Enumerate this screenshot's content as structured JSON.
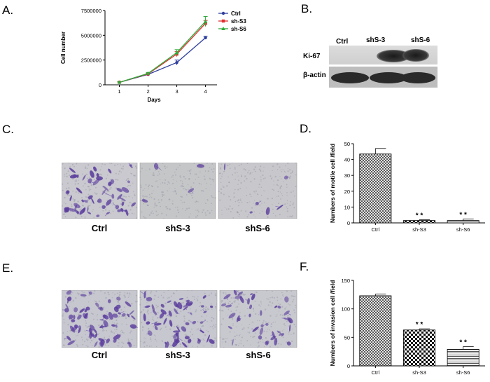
{
  "panels": {
    "a": "A.",
    "b": "B.",
    "c": "C.",
    "d": "D.",
    "e": "E.",
    "f": "F."
  },
  "blot": {
    "lanes": [
      "Ctrl",
      "shS-3",
      "shS-6"
    ],
    "rows": [
      "Ki-67",
      "β-actin"
    ]
  },
  "migration_images": {
    "labels": [
      "Ctrl",
      "shS-3",
      "shS-6"
    ]
  },
  "invasion_images": {
    "labels": [
      "Ctrl",
      "shS-3",
      "shS-6"
    ]
  },
  "chart_data": [
    {
      "id": "A",
      "type": "line",
      "xlabel": "Days",
      "ylabel": "Cell number",
      "x": [
        1,
        2,
        3,
        4
      ],
      "ylim": [
        0,
        7500000
      ],
      "yticks": [
        "0",
        "2500000",
        "5000000",
        "7500000"
      ],
      "legend_position": "top-right",
      "series": [
        {
          "name": "Ctrl",
          "color": "#2f3f9e",
          "marker": "circle",
          "values": [
            250000,
            1050000,
            2250000,
            4750000
          ],
          "errors": [
            50000,
            80000,
            250000,
            150000
          ]
        },
        {
          "name": "sh-S3",
          "color": "#e03030",
          "marker": "square",
          "values": [
            250000,
            1100000,
            3100000,
            6200000
          ],
          "errors": [
            50000,
            80000,
            250000,
            300000
          ]
        },
        {
          "name": "sh-S6",
          "color": "#2eaa3a",
          "marker": "triangle",
          "values": [
            250000,
            1150000,
            3250000,
            6400000
          ],
          "errors": [
            50000,
            100000,
            300000,
            500000
          ]
        }
      ]
    },
    {
      "id": "D",
      "type": "bar",
      "ylabel": "Numbers of motile cell /field",
      "categories": [
        "Ctrl",
        "sh-S3",
        "sh-S6"
      ],
      "values": [
        43.5,
        1.5,
        1.5
      ],
      "errors": [
        3.5,
        0.5,
        1.0
      ],
      "ylim": [
        0,
        50
      ],
      "yticks": [
        "0",
        "10",
        "20",
        "30",
        "40",
        "50"
      ],
      "significance": [
        "",
        "* *",
        "* *"
      ]
    },
    {
      "id": "F",
      "type": "bar",
      "ylabel": "Numbers of invasion cell /field",
      "categories": [
        "Ctrl",
        "sh-S3",
        "sh-S6"
      ],
      "values": [
        123,
        63,
        29
      ],
      "errors": [
        3,
        2,
        5
      ],
      "ylim": [
        0,
        150
      ],
      "yticks": [
        "0",
        "50",
        "100",
        "150"
      ],
      "significance": [
        "",
        "* *",
        "* *"
      ]
    }
  ]
}
